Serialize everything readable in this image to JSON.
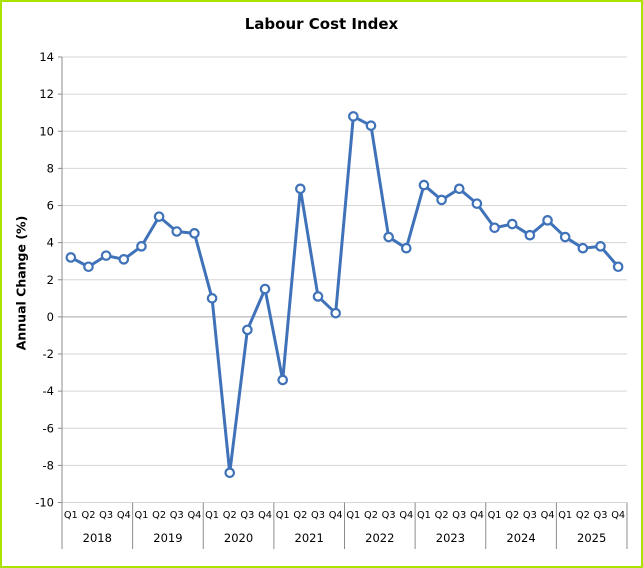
{
  "window": {
    "background": "#FFFFFF",
    "border_color": "#A9E400"
  },
  "chart_data": {
    "type": "line",
    "title": "Labour Cost Index",
    "ylabel": "Annual Change (%)",
    "ylim": [
      -10,
      14
    ],
    "ytick_step": 2,
    "grid": "horizontal-only",
    "legend_position": "none",
    "line_color": "#3F72B8",
    "marker_style": "open-circle",
    "marker_fill": "#FFFFFF",
    "gridline_color": "#D6D6D6",
    "zero_line_color": "#A8A8A8",
    "axis_color": "#8C8C8C",
    "years": [
      "2018",
      "2019",
      "2020",
      "2021",
      "2022",
      "2023",
      "2024",
      "2025"
    ],
    "quarters": [
      "Q1",
      "Q2",
      "Q3",
      "Q4"
    ],
    "values": [
      3.2,
      2.7,
      3.3,
      3.1,
      3.8,
      5.4,
      4.6,
      4.5,
      1.0,
      -8.4,
      -0.7,
      1.5,
      -3.4,
      6.9,
      1.1,
      0.2,
      10.8,
      10.3,
      4.3,
      3.7,
      7.1,
      6.3,
      6.9,
      6.1,
      4.8,
      5.0,
      4.4,
      5.2,
      4.3,
      3.7,
      3.8,
      2.7
    ]
  }
}
